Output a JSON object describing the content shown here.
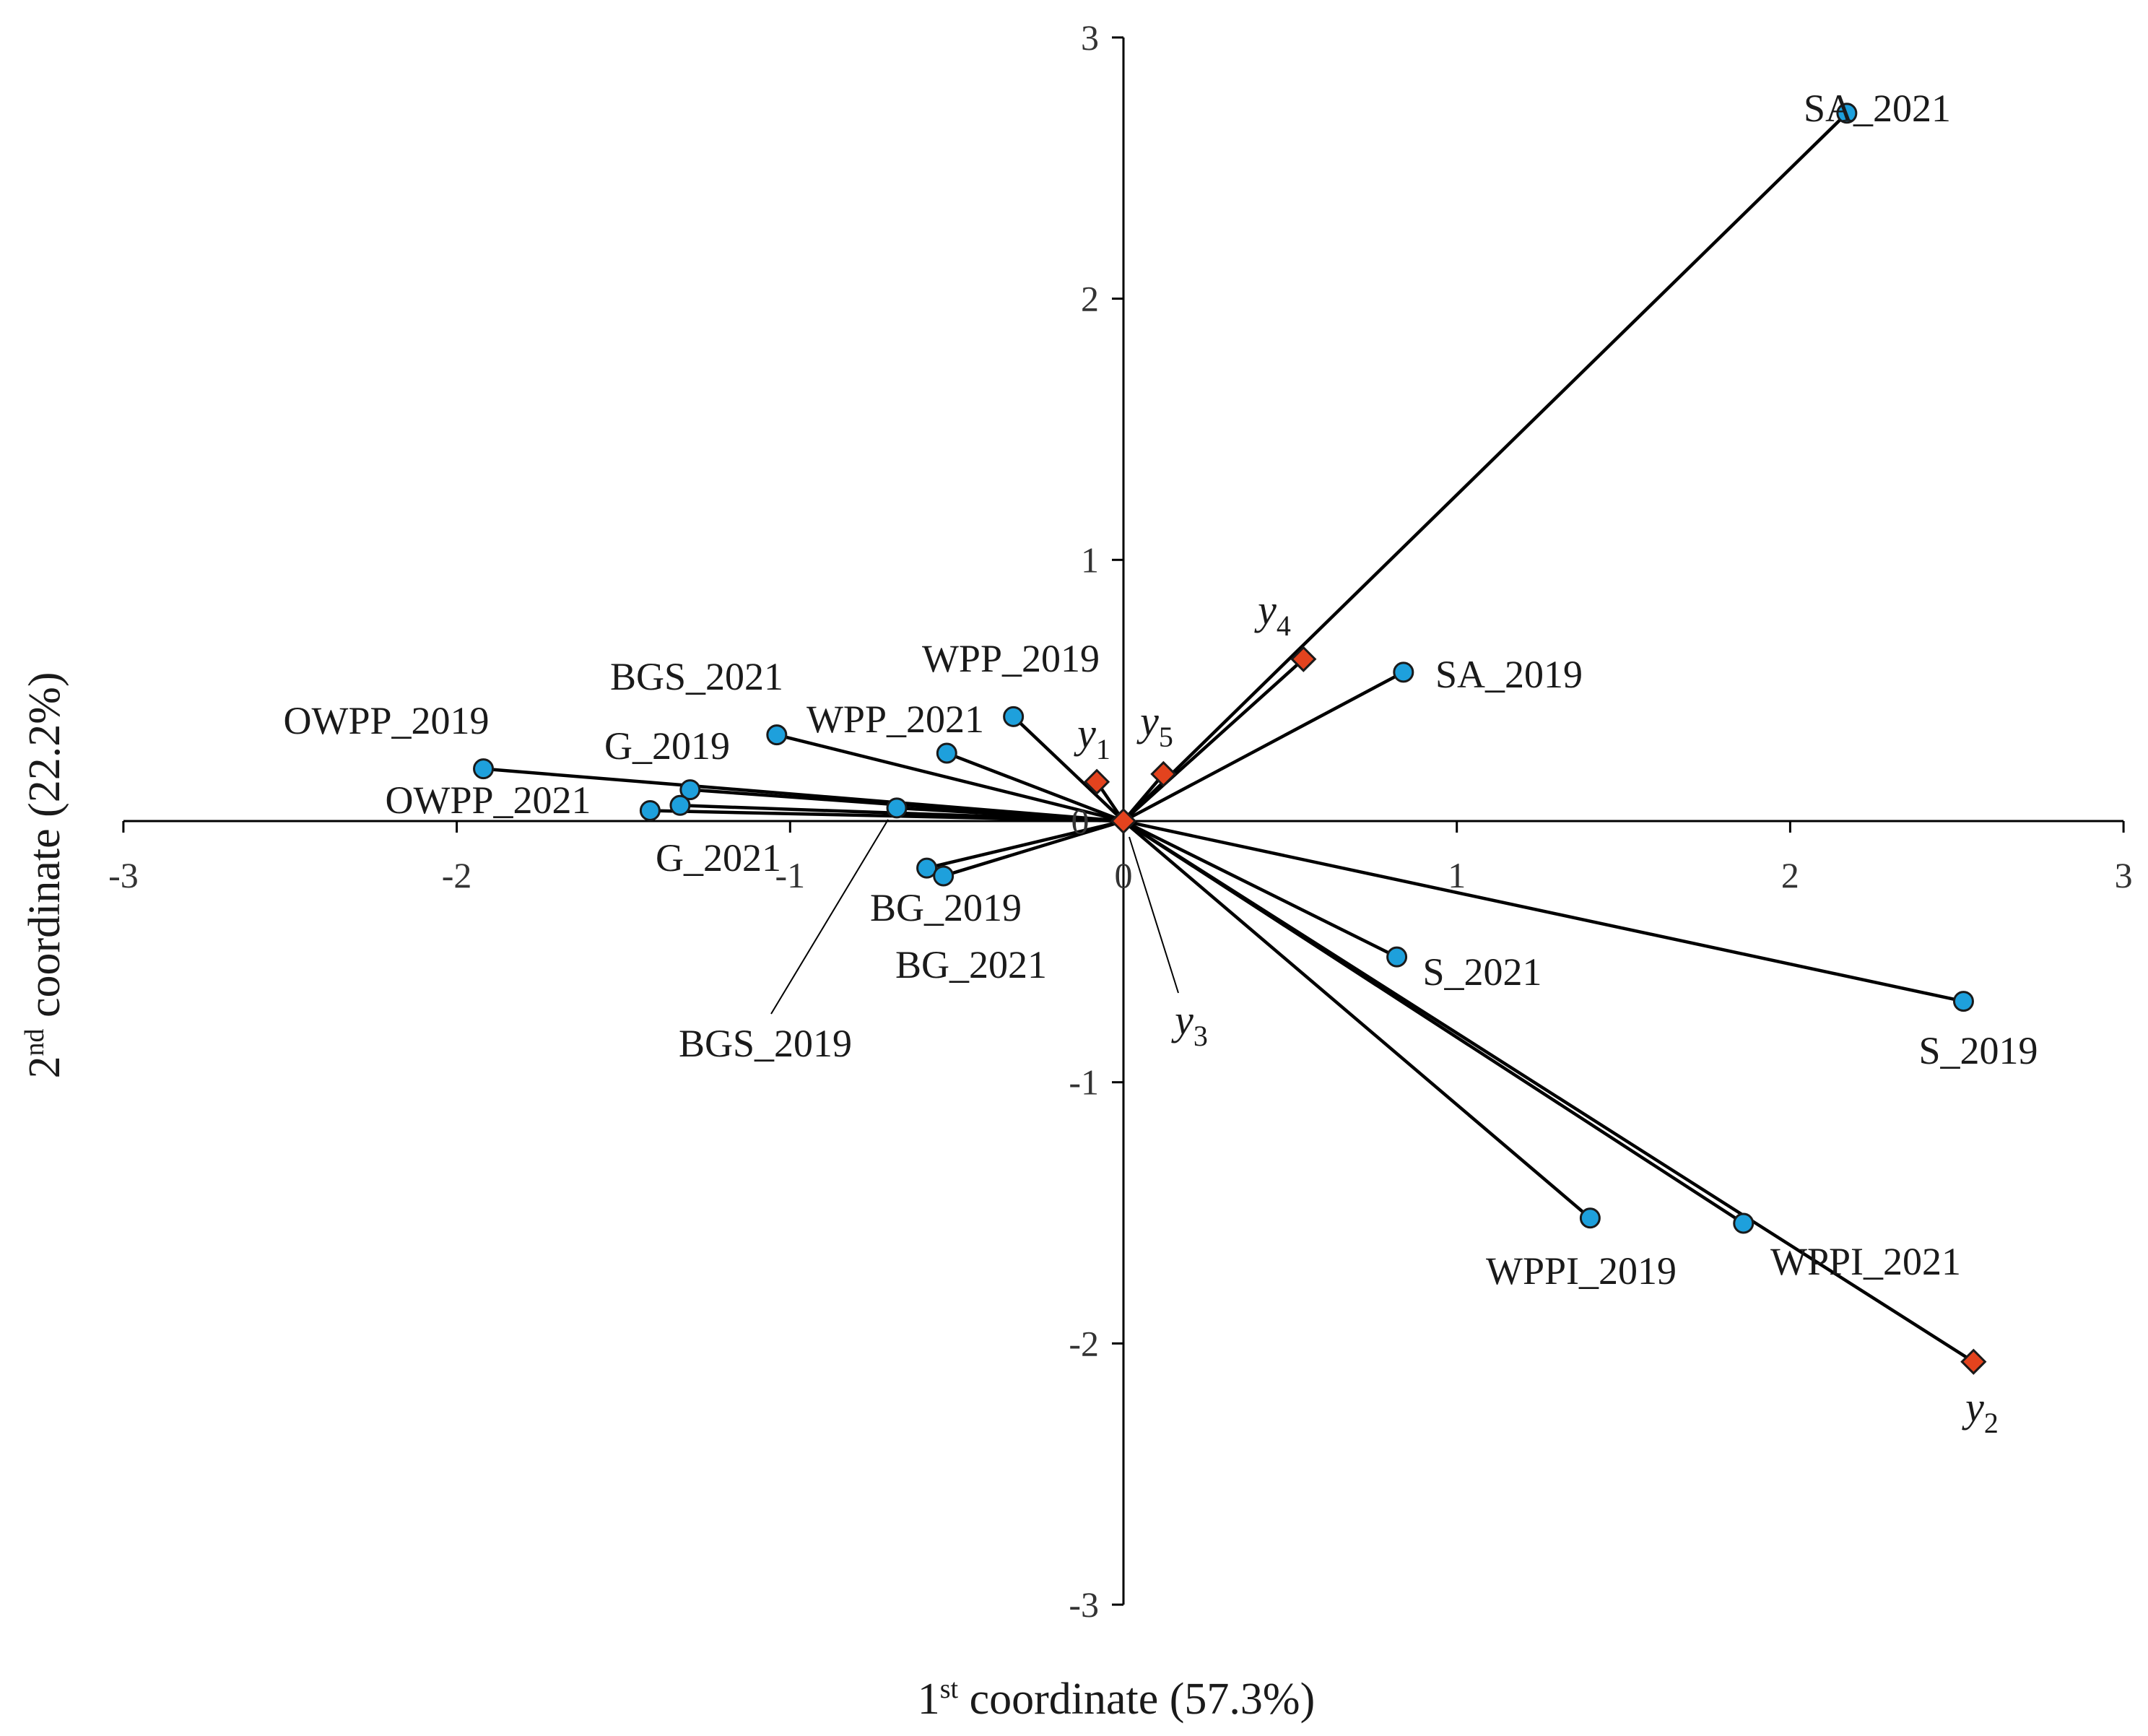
{
  "chart_data": {
    "type": "scatter",
    "title": "",
    "xlabel": {
      "prefix": "1",
      "sup": "st",
      "rest": " coordinate (57.3%)"
    },
    "ylabel": {
      "prefix": "2",
      "sup": "nd",
      "rest": " coordinate (22.2%)"
    },
    "xlim": [
      -3,
      3
    ],
    "ylim": [
      -3,
      3
    ],
    "xticks": [
      -3,
      -2,
      -1,
      0,
      1,
      2,
      3
    ],
    "yticks": [
      -3,
      -2,
      -1,
      1,
      2,
      3
    ],
    "grid": false,
    "colors": {
      "point_fill": "#1ea0dc",
      "variable_fill": "#e3431e",
      "stroke": "#1a1a1a"
    },
    "points": [
      {
        "label": "SA_2021",
        "x": 2.17,
        "y": 2.71
      },
      {
        "label": "SA_2019",
        "x": 0.84,
        "y": 0.57
      },
      {
        "label": "WPP_2019",
        "x": -0.33,
        "y": 0.4
      },
      {
        "label": "WPP_2021",
        "x": -0.53,
        "y": 0.26
      },
      {
        "label": "BGS_2021",
        "x": -1.04,
        "y": 0.33
      },
      {
        "label": "OWPP_2019",
        "x": -1.92,
        "y": 0.2
      },
      {
        "label": "G_2019",
        "x": -1.3,
        "y": 0.12
      },
      {
        "label": "G_2021",
        "x": -1.33,
        "y": 0.06
      },
      {
        "label": "OWPP_2021",
        "x": -1.42,
        "y": 0.04
      },
      {
        "label": "BGS_2019",
        "x": -0.68,
        "y": 0.05
      },
      {
        "label": "BG_2019",
        "x": -0.59,
        "y": -0.18
      },
      {
        "label": "BG_2021",
        "x": -0.54,
        "y": -0.21
      },
      {
        "label": "S_2021",
        "x": 0.82,
        "y": -0.52
      },
      {
        "label": "S_2019",
        "x": 2.52,
        "y": -0.69
      },
      {
        "label": "WPPI_2019",
        "x": 1.4,
        "y": -1.52
      },
      {
        "label": "WPPI_2021",
        "x": 1.86,
        "y": -1.54
      }
    ],
    "variables": [
      {
        "label": "y",
        "sub": "1",
        "x": -0.08,
        "y": 0.15
      },
      {
        "label": "y",
        "sub": "2",
        "x": 2.55,
        "y": -2.07
      },
      {
        "label": "y",
        "sub": "3",
        "x": 0.0,
        "y": 0.0
      },
      {
        "label": "y",
        "sub": "4",
        "x": 0.54,
        "y": 0.62
      },
      {
        "label": "y",
        "sub": "5",
        "x": 0.12,
        "y": 0.18
      }
    ],
    "origin_label": "0"
  }
}
